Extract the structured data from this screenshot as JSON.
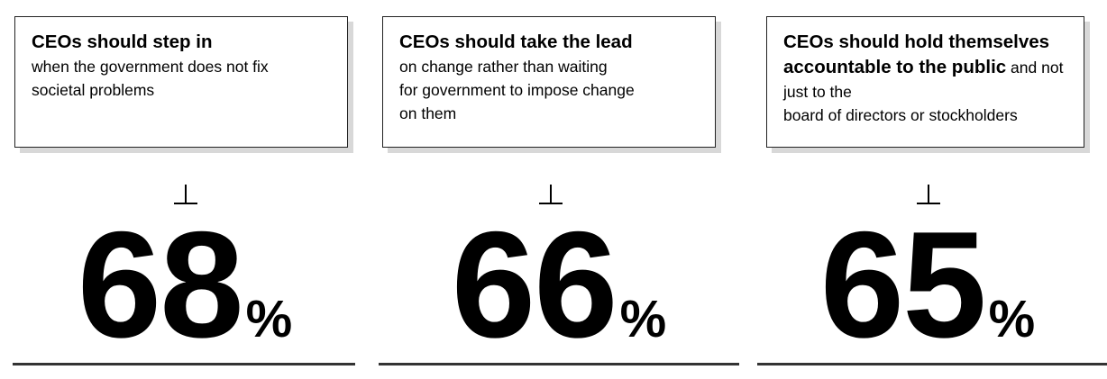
{
  "statements": [
    {
      "lead": "CEOs should step in",
      "rest": "when the government  does not fix\nsocietal problems",
      "value": "68",
      "unit": "%"
    },
    {
      "lead": "CEOs should take the lead",
      "rest": "on change rather than waiting\nfor government  to impose change\non them",
      "value": "66",
      "unit": "%"
    },
    {
      "lead": "CEOs should hold themselves accountable to the public",
      "rest": "and not just to the\nboard of directors or stockholders",
      "value": "65",
      "unit": "%"
    }
  ],
  "colors": {
    "text": "#000000",
    "border": "#222222",
    "shadow": "#d8d8d8",
    "rule": "#333333"
  }
}
